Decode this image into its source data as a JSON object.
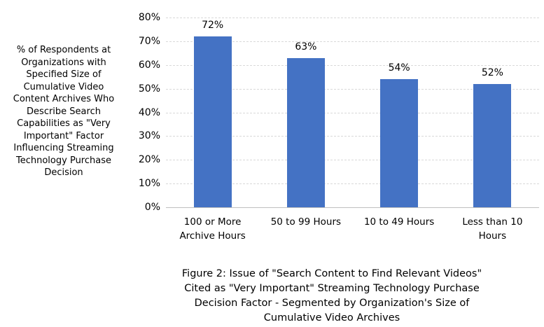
{
  "figure": {
    "y_axis_title": "% of Respondents at\nOrganizations with\nSpecified Size of\nCumulative Video\nContent Archives Who\nDescribe Search\nCapabilities as \"Very\nImportant\" Factor\nInfluencing Streaming\nTechnology Purchase\nDecision",
    "caption": "Figure 2: Issue of \"Search Content to Find Relevant Videos\"\nCited as \"Very Important\" Streaming Technology Purchase\nDecision Factor - Segmented by Organization's Size of\nCumulative Video Archives"
  },
  "chart_data": {
    "type": "bar",
    "categories": [
      "100 or More Archive Hours",
      "50 to 99 Hours",
      "10 to 49 Hours",
      "Less than 10 Hours"
    ],
    "values": [
      72,
      63,
      54,
      52
    ],
    "data_labels": [
      "72%",
      "63%",
      "54%",
      "52%"
    ],
    "title": "",
    "xlabel": "",
    "ylabel": "% of Respondents at Organizations with Specified Size of Cumulative Video Content Archives Who Describe Search Capabilities as \"Very Important\" Factor Influencing Streaming Technology Purchase Decision",
    "caption": "Figure 2: Issue of \"Search Content to Find Relevant Videos\" Cited as \"Very Important\" Streaming Technology Purchase Decision Factor - Segmented by Organization's Size of Cumulative Video Archives",
    "ylim": [
      0,
      80
    ],
    "ytick_labels": [
      "0%",
      "10%",
      "20%",
      "30%",
      "40%",
      "50%",
      "60%",
      "70%",
      "80%"
    ],
    "grid": "horizontal-dashed",
    "legend": "none",
    "bar_color": "#4472C4",
    "gridline_color": "#D9D9D9",
    "axis_line_color": "#BFBFBF",
    "text_color": "#000000"
  }
}
